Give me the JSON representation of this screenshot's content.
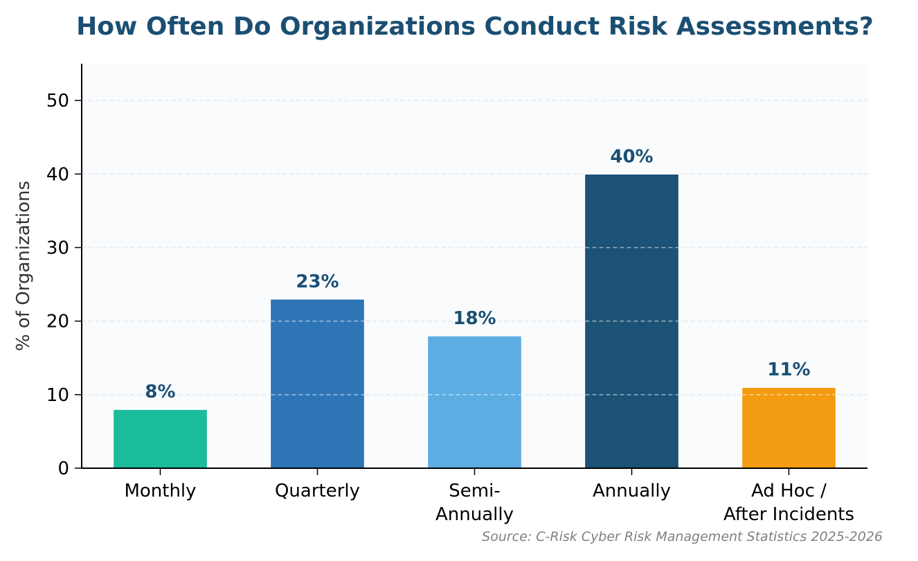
{
  "chart_data": {
    "type": "bar",
    "title": "How Often Do Organizations Conduct Risk Assessments?",
    "xlabel": "",
    "ylabel": "% of Organizations",
    "categories": [
      [
        "Monthly"
      ],
      [
        "Quarterly"
      ],
      [
        "Semi-",
        "Annually"
      ],
      [
        "Annually"
      ],
      [
        "Ad Hoc /",
        "After Incidents"
      ]
    ],
    "values": [
      8,
      23,
      18,
      40,
      11
    ],
    "data_labels": [
      "8%",
      "23%",
      "18%",
      "40%",
      "11%"
    ],
    "bar_colors": [
      "#1abc9c",
      "#2e75b6",
      "#5dade2",
      "#1b5276",
      "#f39c12"
    ],
    "ylim": [
      0,
      55
    ],
    "yticks": [
      0,
      10,
      20,
      30,
      40,
      50
    ],
    "grid": true,
    "source": "Source: C-Risk Cyber Risk Management Statistics 2025-2026",
    "colors": {
      "title": "#1b4f72",
      "data_label": "#1b4f72",
      "plot_background": "#f9fbfd",
      "grid": "#e3e9ef"
    }
  }
}
